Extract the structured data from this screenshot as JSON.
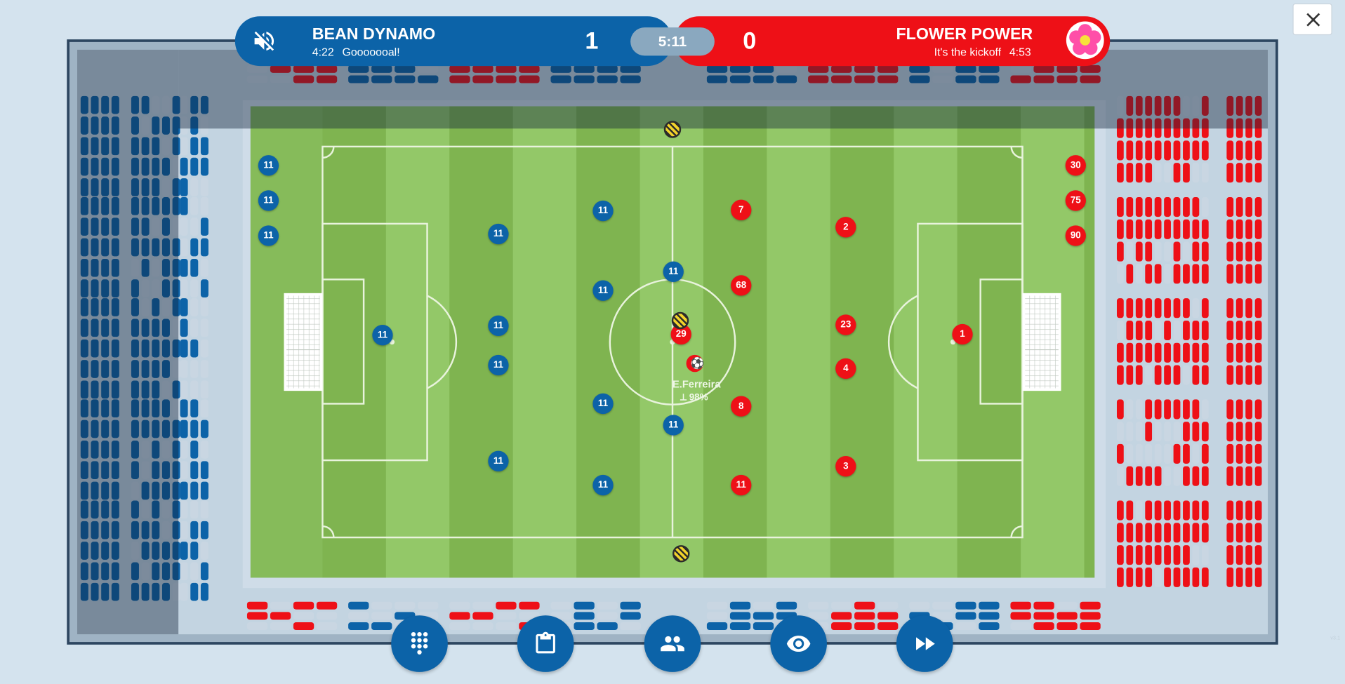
{
  "home": {
    "name": "BEAN DYNAMO",
    "score": "1",
    "event_time": "4:22",
    "event_text": "Gooooooal!",
    "color": "#0c63a8"
  },
  "away": {
    "name": "FLOWER POWER",
    "score": "0",
    "event_text": "It's the kickoff",
    "event_time": "4:53",
    "color": "#ee1017"
  },
  "clock": "5:11",
  "ball_carrier": {
    "name": "E.Ferreira",
    "stat": "⟂ 98%"
  },
  "players": {
    "home": [
      {
        "number": "11",
        "role": "sub"
      },
      {
        "number": "11",
        "role": "sub"
      },
      {
        "number": "11",
        "role": "sub"
      },
      {
        "number": "11",
        "role": "goalkeeper"
      },
      {
        "number": "11",
        "role": "defender"
      },
      {
        "number": "11",
        "role": "defender"
      },
      {
        "number": "11",
        "role": "defender"
      },
      {
        "number": "11",
        "role": "defender"
      },
      {
        "number": "11",
        "role": "midfielder"
      },
      {
        "number": "11",
        "role": "midfielder"
      },
      {
        "number": "11",
        "role": "midfielder"
      },
      {
        "number": "11",
        "role": "midfielder"
      },
      {
        "number": "11",
        "role": "forward"
      },
      {
        "number": "11",
        "role": "forward"
      }
    ],
    "away": [
      {
        "number": "30",
        "role": "sub"
      },
      {
        "number": "75",
        "role": "sub"
      },
      {
        "number": "90",
        "role": "sub"
      },
      {
        "number": "1",
        "role": "goalkeeper"
      },
      {
        "number": "2",
        "role": "defender"
      },
      {
        "number": "23",
        "role": "defender"
      },
      {
        "number": "4",
        "role": "defender"
      },
      {
        "number": "3",
        "role": "defender"
      },
      {
        "number": "7",
        "role": "midfielder"
      },
      {
        "number": "68",
        "role": "midfielder"
      },
      {
        "number": "8",
        "role": "midfielder"
      },
      {
        "number": "11",
        "role": "midfielder"
      },
      {
        "number": "29",
        "role": "forward"
      }
    ]
  },
  "toolbar": [
    {
      "icon": "keypad-icon",
      "name": "tactics-button"
    },
    {
      "icon": "clipboard-icon",
      "name": "lineup-button"
    },
    {
      "icon": "people-icon",
      "name": "substitutions-button"
    },
    {
      "icon": "eye-icon",
      "name": "view-button"
    },
    {
      "icon": "fast-forward-icon",
      "name": "speed-button"
    }
  ],
  "icons": {
    "sound": "volume-off-icon",
    "close": "close-icon",
    "away_logo": "flower-logo-icon"
  },
  "watermark": "v3.1"
}
